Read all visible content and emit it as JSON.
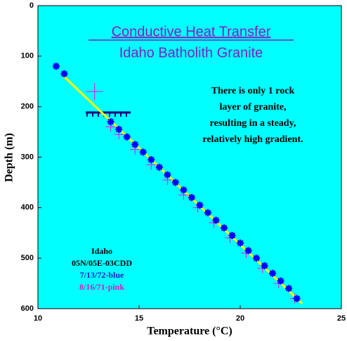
{
  "chart_data": {
    "type": "scatter",
    "title": "Conductive Heat Transfer",
    "subtitle": "Idaho Batholith Granite",
    "annotation": [
      "There is only 1 rock",
      "layer of granite,",
      "resulting in a steady,",
      "relatively high gradient."
    ],
    "legend_text": [
      {
        "text": "Idaho",
        "color": "#000000"
      },
      {
        "text": "05N/05E-03CDD",
        "color": "#000000"
      },
      {
        "text": "7/13/72-blue",
        "color": "#2020c0"
      },
      {
        "text": "8/16/71-pink",
        "color": "#d020c0"
      }
    ],
    "x_label": "Temperature (°C)",
    "y_label": "Depth (m)",
    "xlim": [
      10,
      25
    ],
    "xticks": [
      10,
      15,
      20,
      25
    ],
    "ylim": [
      0,
      600
    ],
    "yticks": [
      0,
      100,
      200,
      300,
      400,
      500,
      600
    ],
    "y_inverted": true,
    "background": "#00ffff",
    "series": [
      {
        "color": "#ffff00",
        "marker": "none",
        "x": [
          11.25,
          23.06
        ],
        "y": [
          139,
          590
        ]
      },
      {
        "color": "#ff00ff",
        "marker": "cross",
        "x": [
          12.8,
          13.6,
          14.0,
          14.8,
          15.6,
          16.4,
          17.2,
          17.9,
          18.7,
          19.5,
          20.3,
          21.1,
          21.9,
          22.7
        ],
        "y": [
          170,
          240,
          255,
          285,
          315,
          345,
          375,
          400,
          430,
          460,
          490,
          520,
          550,
          580
        ]
      },
      {
        "color": "#0000ff",
        "marker": "star",
        "x": [
          10.9,
          11.3,
          13.6,
          14.0,
          14.4,
          14.8,
          15.2,
          15.6,
          16.0,
          16.4,
          16.8,
          17.2,
          17.6,
          18.0,
          18.4,
          18.8,
          19.2,
          19.6,
          20.0,
          20.4,
          20.8,
          21.2,
          21.6,
          22.0,
          22.4,
          22.8
        ],
        "y": [
          120,
          135,
          230,
          245,
          260,
          275,
          290,
          305,
          320,
          335,
          350,
          365,
          380,
          395,
          410,
          425,
          440,
          455,
          470,
          485,
          500,
          515,
          530,
          545,
          560,
          580
        ]
      }
    ]
  }
}
